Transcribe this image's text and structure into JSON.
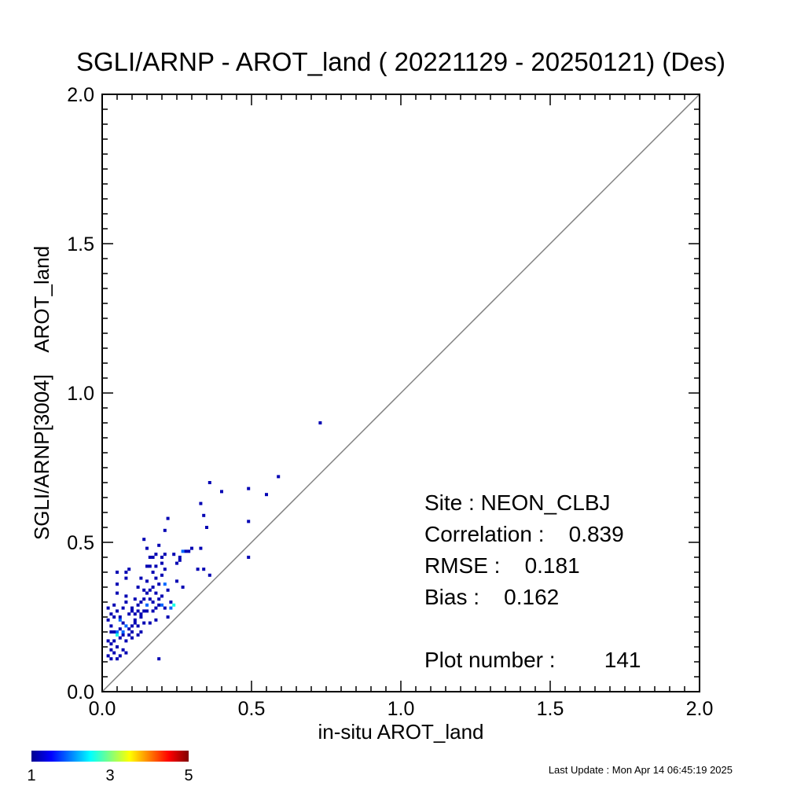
{
  "chart_data": {
    "type": "scatter",
    "title": "SGLI/ARNP - AROT_land ( 20221129 - 20250121) (Des)",
    "xlabel": "in-situ AROT_land",
    "ylabel": "SGLI/ARNP[3004]    AROT_land",
    "xlim": [
      0.0,
      2.0
    ],
    "ylim": [
      0.0,
      2.0
    ],
    "x_ticks": [
      "0.0",
      "0.5",
      "1.0",
      "1.5",
      "2.0"
    ],
    "y_ticks": [
      "0.0",
      "0.5",
      "1.0",
      "1.5",
      "2.0"
    ],
    "reference_line": "1:1",
    "colorbar": {
      "min": 1,
      "max": 5,
      "ticks": [
        "1",
        "3",
        "5"
      ]
    },
    "stats": {
      "site": "Site : NEON_CLBJ",
      "correlation": "Correlation :    0.839",
      "rmse": "RMSE :    0.181",
      "bias": "Bias :    0.162",
      "plot_number": "Plot number :        141"
    },
    "last_update": "Last Update : Mon Apr 14 06:45:19 2025",
    "points": [
      [
        0.73,
        0.9,
        1
      ],
      [
        0.59,
        0.72,
        1
      ],
      [
        0.55,
        0.66,
        1
      ],
      [
        0.49,
        0.68,
        1
      ],
      [
        0.49,
        0.57,
        1
      ],
      [
        0.49,
        0.45,
        1
      ],
      [
        0.4,
        0.67,
        1
      ],
      [
        0.36,
        0.7,
        1
      ],
      [
        0.35,
        0.55,
        1
      ],
      [
        0.36,
        0.39,
        1
      ],
      [
        0.34,
        0.59,
        1
      ],
      [
        0.33,
        0.63,
        1
      ],
      [
        0.34,
        0.41,
        1
      ],
      [
        0.32,
        0.41,
        1
      ],
      [
        0.33,
        0.48,
        1
      ],
      [
        0.28,
        0.47,
        1
      ],
      [
        0.27,
        0.47,
        2
      ],
      [
        0.26,
        0.44,
        1
      ],
      [
        0.25,
        0.43,
        1
      ],
      [
        0.24,
        0.46,
        1
      ],
      [
        0.27,
        0.35,
        1
      ],
      [
        0.25,
        0.37,
        1
      ],
      [
        0.23,
        0.3,
        1
      ],
      [
        0.22,
        0.58,
        1
      ],
      [
        0.21,
        0.54,
        1
      ],
      [
        0.19,
        0.49,
        1
      ],
      [
        0.21,
        0.46,
        1
      ],
      [
        0.2,
        0.43,
        1
      ],
      [
        0.21,
        0.41,
        1
      ],
      [
        0.18,
        0.46,
        1
      ],
      [
        0.17,
        0.45,
        1
      ],
      [
        0.16,
        0.45,
        1
      ],
      [
        0.14,
        0.51,
        1
      ],
      [
        0.15,
        0.48,
        1
      ],
      [
        0.16,
        0.42,
        1
      ],
      [
        0.18,
        0.38,
        1
      ],
      [
        0.2,
        0.39,
        1
      ],
      [
        0.19,
        0.36,
        1
      ],
      [
        0.21,
        0.36,
        2
      ],
      [
        0.22,
        0.34,
        1
      ],
      [
        0.17,
        0.35,
        1
      ],
      [
        0.16,
        0.34,
        1
      ],
      [
        0.15,
        0.33,
        1
      ],
      [
        0.14,
        0.34,
        1
      ],
      [
        0.18,
        0.33,
        1
      ],
      [
        0.2,
        0.32,
        1
      ],
      [
        0.16,
        0.31,
        1
      ],
      [
        0.14,
        0.31,
        1
      ],
      [
        0.19,
        0.29,
        1
      ],
      [
        0.2,
        0.29,
        2
      ],
      [
        0.21,
        0.28,
        1
      ],
      [
        0.23,
        0.28,
        2
      ],
      [
        0.18,
        0.28,
        1
      ],
      [
        0.17,
        0.27,
        1
      ],
      [
        0.15,
        0.27,
        1
      ],
      [
        0.13,
        0.26,
        1
      ],
      [
        0.12,
        0.27,
        1
      ],
      [
        0.11,
        0.26,
        1
      ],
      [
        0.1,
        0.27,
        1
      ],
      [
        0.18,
        0.24,
        1
      ],
      [
        0.16,
        0.23,
        1
      ],
      [
        0.14,
        0.23,
        1
      ],
      [
        0.12,
        0.22,
        1
      ],
      [
        0.11,
        0.24,
        1
      ],
      [
        0.13,
        0.2,
        1
      ],
      [
        0.12,
        0.19,
        1
      ],
      [
        0.1,
        0.18,
        1
      ],
      [
        0.09,
        0.21,
        1
      ],
      [
        0.08,
        0.22,
        2
      ],
      [
        0.07,
        0.23,
        1
      ],
      [
        0.06,
        0.21,
        1
      ],
      [
        0.05,
        0.2,
        2
      ],
      [
        0.05,
        0.19,
        3
      ],
      [
        0.04,
        0.2,
        1
      ],
      [
        0.03,
        0.2,
        1
      ],
      [
        0.06,
        0.18,
        1
      ],
      [
        0.07,
        0.19,
        1
      ],
      [
        0.08,
        0.17,
        1
      ],
      [
        0.04,
        0.17,
        1
      ],
      [
        0.03,
        0.16,
        1
      ],
      [
        0.02,
        0.17,
        1
      ],
      [
        0.05,
        0.15,
        1
      ],
      [
        0.03,
        0.14,
        1
      ],
      [
        0.04,
        0.13,
        1
      ],
      [
        0.06,
        0.12,
        1
      ],
      [
        0.08,
        0.13,
        1
      ],
      [
        0.02,
        0.12,
        1
      ],
      [
        0.03,
        0.11,
        1
      ],
      [
        0.05,
        0.11,
        1
      ],
      [
        0.07,
        0.14,
        1
      ],
      [
        0.02,
        0.28,
        1
      ],
      [
        0.04,
        0.29,
        1
      ],
      [
        0.05,
        0.27,
        1
      ],
      [
        0.06,
        0.25,
        1
      ],
      [
        0.06,
        0.24,
        2
      ],
      [
        0.04,
        0.25,
        1
      ],
      [
        0.07,
        0.28,
        1
      ],
      [
        0.08,
        0.3,
        1
      ],
      [
        0.05,
        0.33,
        1
      ],
      [
        0.08,
        0.32,
        1
      ],
      [
        0.05,
        0.36,
        1
      ],
      [
        0.08,
        0.38,
        1
      ],
      [
        0.08,
        0.4,
        1
      ],
      [
        0.05,
        0.4,
        1
      ],
      [
        0.09,
        0.41,
        1
      ],
      [
        0.1,
        0.28,
        1
      ],
      [
        0.09,
        0.26,
        1
      ],
      [
        0.12,
        0.29,
        1
      ],
      [
        0.13,
        0.3,
        1
      ],
      [
        0.11,
        0.31,
        1
      ],
      [
        0.14,
        0.27,
        1
      ],
      [
        0.15,
        0.29,
        2
      ],
      [
        0.17,
        0.3,
        1
      ],
      [
        0.19,
        0.31,
        1
      ],
      [
        0.13,
        0.25,
        1
      ],
      [
        0.19,
        0.11,
        1
      ],
      [
        0.09,
        0.19,
        1
      ],
      [
        0.1,
        0.22,
        1
      ],
      [
        0.07,
        0.2,
        2
      ],
      [
        0.03,
        0.22,
        1
      ],
      [
        0.02,
        0.24,
        1
      ],
      [
        0.03,
        0.26,
        1
      ],
      [
        0.15,
        0.37,
        1
      ],
      [
        0.17,
        0.4,
        1
      ],
      [
        0.13,
        0.38,
        1
      ],
      [
        0.12,
        0.35,
        1
      ],
      [
        0.22,
        0.25,
        1
      ],
      [
        0.24,
        0.29,
        3
      ],
      [
        0.26,
        0.45,
        1
      ],
      [
        0.29,
        0.47,
        1
      ],
      [
        0.3,
        0.48,
        1
      ],
      [
        0.2,
        0.45,
        1
      ],
      [
        0.18,
        0.42,
        1
      ],
      [
        0.15,
        0.42,
        1
      ],
      [
        0.11,
        0.23,
        1
      ],
      [
        0.1,
        0.2,
        1
      ]
    ]
  }
}
